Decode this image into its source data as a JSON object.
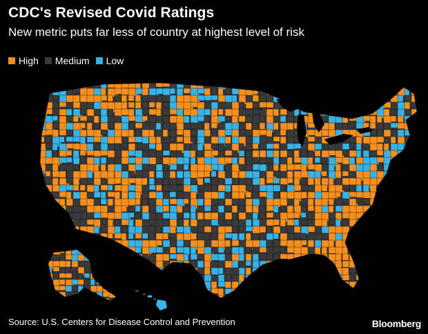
{
  "header": {
    "title": "CDC's Revised Covid Ratings",
    "subtitle": "New metric puts far less of country at highest level of risk"
  },
  "legend": {
    "items": [
      {
        "key": "high",
        "label": "High",
        "color": "#f7901e"
      },
      {
        "key": "medium",
        "label": "Medium",
        "color": "#3a3a3a"
      },
      {
        "key": "low",
        "label": "Low",
        "color": "#39b3e6"
      }
    ]
  },
  "map": {
    "region": "United States counties",
    "levels": [
      "high",
      "medium",
      "low"
    ],
    "colors": {
      "high": "#f7901e",
      "medium": "#3a3a3a",
      "low": "#39b3e6",
      "water": "#000000"
    }
  },
  "footer": {
    "source": "Source: U.S. Centers for Disease Control and Prevention",
    "brand": "Bloomberg"
  }
}
